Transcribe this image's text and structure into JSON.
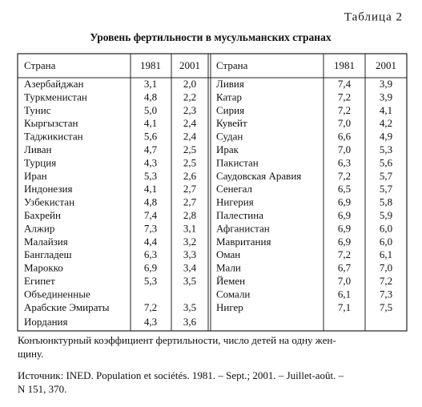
{
  "label": "Таблица 2",
  "heading": "Уровень фертильности в мусульманских странах",
  "table": {
    "header": [
      "Страна",
      "1981",
      "2001",
      "Страна",
      "1981",
      "2001"
    ],
    "rows": [
      [
        "Азербайджан",
        "3,1",
        "2,0",
        "Ливия",
        "7,4",
        "3,9"
      ],
      [
        "Туркменистан",
        "4,8",
        "2,2",
        "Катар",
        "7,2",
        "3,9"
      ],
      [
        "Тунис",
        "5,0",
        "2,3",
        "Сирия",
        "7,2",
        "4,1"
      ],
      [
        "Кыргызстан",
        "4,1",
        "2,4",
        "Кувейт",
        "7,0",
        "4,2"
      ],
      [
        "Таджикистан",
        "5,6",
        "2,4",
        "Судан",
        "6,6",
        "4,9"
      ],
      [
        "Ливан",
        "4,7",
        "2,5",
        "Ирак",
        "7,0",
        "5,3"
      ],
      [
        "Турция",
        "4,3",
        "2,5",
        "Пакистан",
        "6,3",
        "5,6"
      ],
      [
        "Иран",
        "5,3",
        "2,6",
        "Саудовская Аравия",
        "7,2",
        "5,7"
      ],
      [
        "Индонезия",
        "4,1",
        "2,7",
        "Сенегал",
        "6,5",
        "5,7"
      ],
      [
        "Узбекистан",
        "4,8",
        "2,7",
        "Нигерия",
        "6,9",
        "5,8"
      ],
      [
        "Бахрейн",
        "7,4",
        "2,8",
        "Палестина",
        "6,9",
        "5,9"
      ],
      [
        "Алжир",
        "7,3",
        "3,1",
        "Афганистан",
        "6,9",
        "6,0"
      ],
      [
        "Малайзия",
        "4,4",
        "3,2",
        "Мавритания",
        "6,9",
        "6,0"
      ],
      [
        "Бангладеш",
        "6,3",
        "3,3",
        "Оман",
        "7,2",
        "6,1"
      ],
      [
        "Марокко",
        "6,9",
        "3,4",
        "Мали",
        "6,7",
        "7,0"
      ],
      [
        "Египет",
        "5,3",
        "3,5",
        "Йемен",
        "7,0",
        "7,2"
      ],
      [
        "Объединенные",
        null,
        null,
        "Сомали",
        "6,1",
        "7,3"
      ],
      [
        "Арабские Эмираты",
        "7,2",
        "3,5",
        "Нигер",
        "7,1",
        "7,5"
      ],
      [
        "Иордания",
        "4,3",
        "3,6",
        null,
        null,
        null
      ]
    ]
  },
  "note": [
    "Конъюнктурный коэффициент фертильности, число детей на одну жен-",
    "щину."
  ],
  "source": [
    "Источник: INED. Population et sociétés. 1981. – Sept.; 2001. – Juillet-août. –",
    "N 151, 370."
  ]
}
